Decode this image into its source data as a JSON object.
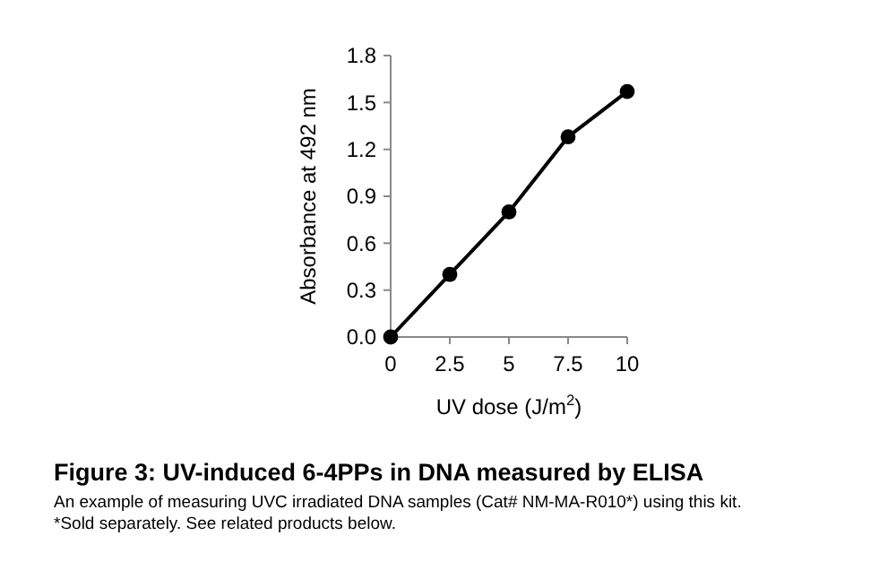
{
  "chart_data": {
    "type": "line",
    "title": "Figure 3: UV-induced 6-4PPs in DNA measured by ELISA",
    "annotations": [
      "An example of measuring UVC irradiated DNA samples (Cat# NM-MA-R010*) using this kit.",
      "*Sold separately. See related products below."
    ],
    "xlabel": "UV dose (J/m$^{2}$)",
    "ylabel": "Absorbance at 492 nm",
    "x": [
      0,
      2.5,
      5,
      7.5,
      10
    ],
    "series": [
      {
        "color": "#000000",
        "values": [
          0,
          0.4,
          0.8,
          1.28,
          1.57
        ]
      }
    ],
    "xlim": [
      0,
      10
    ],
    "xticks": [
      0,
      2.5,
      5,
      7.5,
      10
    ],
    "ylim": [
      0,
      1.8
    ],
    "yticks": [
      {
        "value": 0,
        "label": "0.0"
      },
      {
        "value": 0.3,
        "label": "0.3"
      },
      {
        "value": 0.6,
        "label": "0.6"
      },
      {
        "value": 0.9,
        "label": "0.9"
      },
      {
        "value": 1.2,
        "label": "1.2"
      },
      {
        "value": 1.5,
        "label": "1.5"
      },
      {
        "value": 1.8,
        "label": "1.8"
      }
    ],
    "marker": "circle",
    "line_style": "solid"
  }
}
